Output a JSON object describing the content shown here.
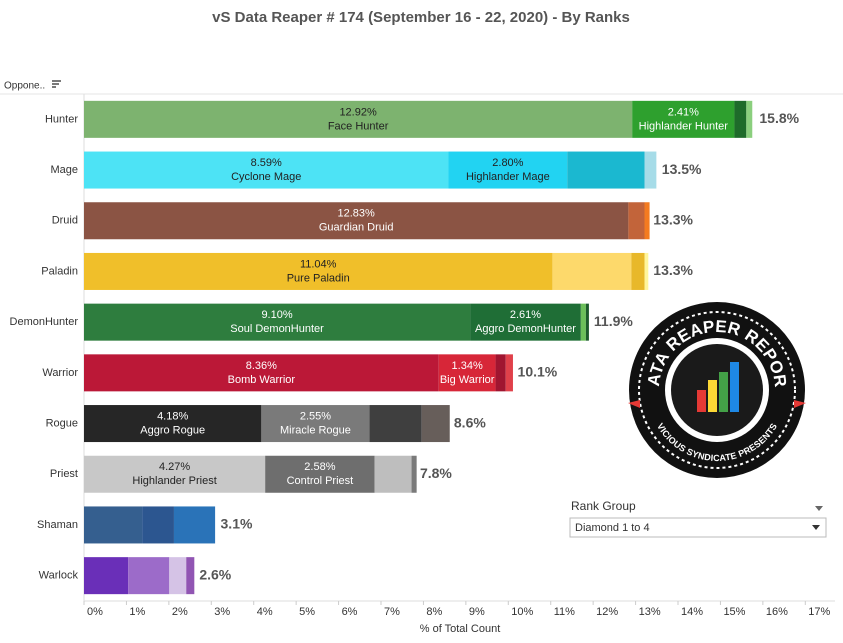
{
  "chart_data": {
    "type": "stacked_barh",
    "title": "vS Data Reaper #  174 (September 16 - 22, 2020) - By Ranks",
    "y_header": "Oppone..",
    "xlabel": "% of Total Count",
    "xlim": [
      0,
      17.7
    ],
    "xticks": [
      {
        "value": 0,
        "label": "0%"
      },
      {
        "value": 1,
        "label": "1%"
      },
      {
        "value": 2,
        "label": "2%"
      },
      {
        "value": 3,
        "label": "3%"
      },
      {
        "value": 4,
        "label": "4%"
      },
      {
        "value": 5,
        "label": "5%"
      },
      {
        "value": 6,
        "label": "6%"
      },
      {
        "value": 7,
        "label": "7%"
      },
      {
        "value": 8,
        "label": "8%"
      },
      {
        "value": 9,
        "label": "9%"
      },
      {
        "value": 10,
        "label": "10%"
      },
      {
        "value": 11,
        "label": "11%"
      },
      {
        "value": 12,
        "label": "12%"
      },
      {
        "value": 13,
        "label": "13%"
      },
      {
        "value": 14,
        "label": "14%"
      },
      {
        "value": 15,
        "label": "15%"
      },
      {
        "value": 16,
        "label": "16%"
      },
      {
        "value": 17,
        "label": "17%"
      }
    ],
    "grid": false,
    "rows": [
      {
        "category": "Hunter",
        "total": 15.8,
        "total_label": "15.8%",
        "segments": [
          {
            "name": "Face Hunter",
            "value": 12.92,
            "value_label": "12.92%",
            "color": "#7db36f"
          },
          {
            "name": "Highlander Hunter",
            "value": 2.41,
            "value_label": "2.41%",
            "color": "#2ea02e"
          },
          {
            "value": 0.28,
            "color": "#1e6b2a"
          },
          {
            "value": 0.14,
            "color": "#8bcf7e"
          }
        ]
      },
      {
        "category": "Mage",
        "total": 13.5,
        "total_label": "13.5%",
        "segments": [
          {
            "name": "Cyclone Mage",
            "value": 8.59,
            "value_label": "8.59%",
            "color": "#4de3f5"
          },
          {
            "name": "Highlander Mage",
            "value": 2.8,
            "value_label": "2.80%",
            "color": "#22d3f2"
          },
          {
            "value": 1.82,
            "color": "#1bb8d0"
          },
          {
            "value": 0.28,
            "color": "#a6dce8"
          }
        ]
      },
      {
        "category": "Druid",
        "total": 13.3,
        "total_label": "13.3%",
        "segments": [
          {
            "name": "Guardian Druid",
            "value": 12.83,
            "value_label": "12.83%",
            "color": "#8b5444"
          },
          {
            "value": 0.38,
            "color": "#c2643a"
          },
          {
            "value": 0.12,
            "color": "#f47b20"
          }
        ]
      },
      {
        "category": "Paladin",
        "total": 13.3,
        "total_label": "13.3%",
        "segments": [
          {
            "name": "Pure Paladin",
            "value": 11.04,
            "value_label": "11.04%",
            "color": "#f0bf2a"
          },
          {
            "value": 1.86,
            "color": "#fdd96b"
          },
          {
            "value": 0.31,
            "color": "#e8b82a"
          },
          {
            "value": 0.09,
            "color": "#fff59b"
          }
        ]
      },
      {
        "category": "DemonHunter",
        "total": 11.9,
        "total_label": "11.9%",
        "segments": [
          {
            "name": "Soul DemonHunter",
            "value": 9.1,
            "value_label": "9.10%",
            "color": "#2e7d3e"
          },
          {
            "name": "Aggro DemonHunter",
            "value": 2.61,
            "value_label": "2.61%",
            "color": "#1f6e36"
          },
          {
            "value": 0.12,
            "color": "#6cbf5a"
          },
          {
            "value": 0.07,
            "color": "#1d5a2c"
          }
        ]
      },
      {
        "category": "Warrior",
        "total": 10.1,
        "total_label": "10.1%",
        "segments": [
          {
            "name": "Bomb Warrior",
            "value": 8.36,
            "value_label": "8.36%",
            "color": "#bb1837"
          },
          {
            "name": "Big Warrior",
            "value": 1.34,
            "value_label": "1.34%",
            "color": "#d72638"
          },
          {
            "value": 0.24,
            "color": "#a01530"
          },
          {
            "value": 0.17,
            "color": "#e0404a"
          }
        ]
      },
      {
        "category": "Rogue",
        "total": 8.6,
        "total_label": "8.6%",
        "segments": [
          {
            "name": "Aggro Rogue",
            "value": 4.18,
            "value_label": "4.18%",
            "color": "#262626"
          },
          {
            "name": "Miracle Rogue",
            "value": 2.55,
            "value_label": "2.55%",
            "color": "#7a7a7a"
          },
          {
            "value": 1.23,
            "color": "#3f3f3f"
          },
          {
            "value": 0.66,
            "color": "#675e5a"
          }
        ]
      },
      {
        "category": "Priest",
        "total": 7.8,
        "total_label": "7.8%",
        "segments": [
          {
            "name": "Highlander Priest",
            "value": 4.27,
            "value_label": "4.27%",
            "color": "#c8c8c8"
          },
          {
            "name": "Control Priest",
            "value": 2.58,
            "value_label": "2.58%",
            "color": "#6e6e6e"
          },
          {
            "value": 0.87,
            "color": "#bebebe"
          },
          {
            "value": 0.12,
            "color": "#7a7a7a"
          }
        ]
      },
      {
        "category": "Shaman",
        "total": 3.1,
        "total_label": "3.1%",
        "segments": [
          {
            "value": 1.37,
            "color": "#355f8f"
          },
          {
            "value": 0.75,
            "color": "#2c5690"
          },
          {
            "value": 0.97,
            "color": "#2a73b8"
          }
        ]
      },
      {
        "category": "Warlock",
        "total": 2.6,
        "total_label": "2.6%",
        "segments": [
          {
            "value": 1.04,
            "color": "#6a2fb8"
          },
          {
            "value": 0.97,
            "color": "#9c6bc9"
          },
          {
            "value": 0.4,
            "color": "#d5c3e6"
          },
          {
            "value": 0.19,
            "color": "#9155b3"
          }
        ]
      }
    ]
  },
  "filter": {
    "title": "Rank Group",
    "selected": "Diamond 1 to 4"
  },
  "logo": {
    "title": "DATA REAPER REPORT",
    "subtitle": "VICIOUS SYNDICATE PRESENTS"
  }
}
